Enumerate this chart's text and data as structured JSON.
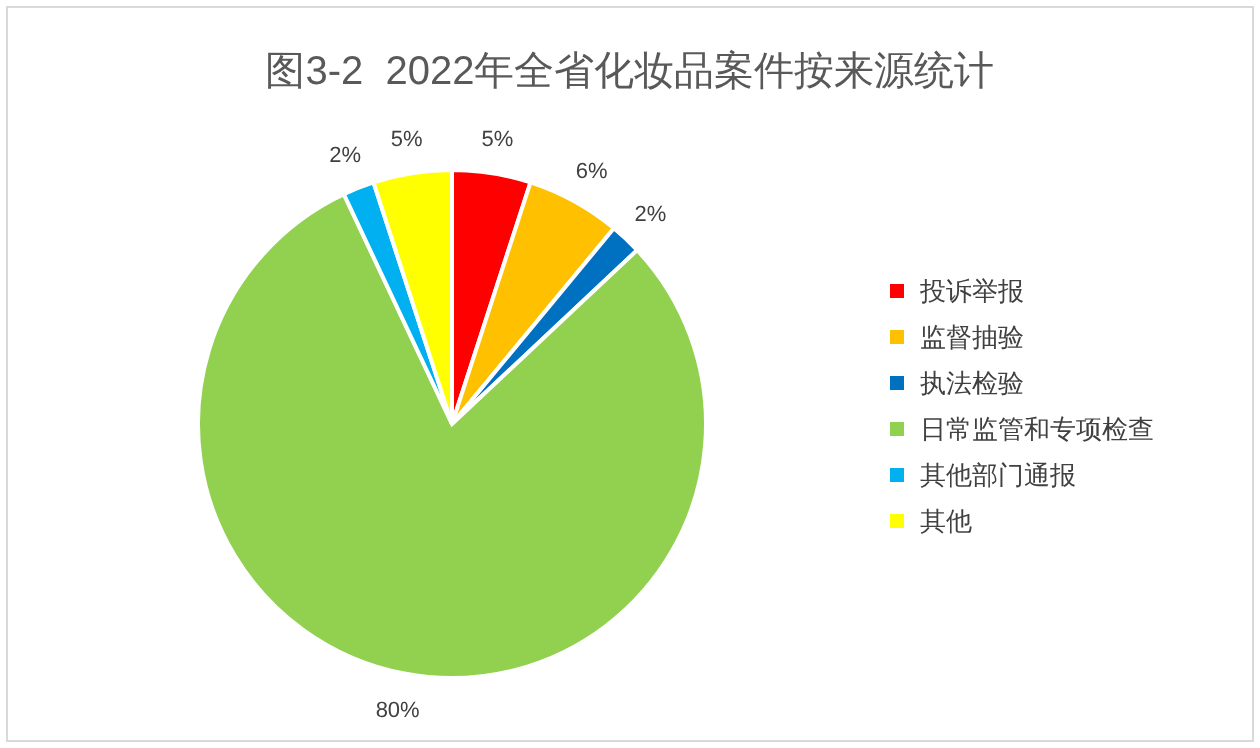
{
  "chart_data": {
    "type": "pie",
    "title": "图3-2  2022年全省化妆品案件按来源统计",
    "categories": [
      "投诉举报",
      "监督抽验",
      "执法检验",
      "日常监管和专项检查",
      "其他部门通报",
      "其他"
    ],
    "values": [
      5,
      6,
      2,
      80,
      2,
      5
    ],
    "colors": [
      "#ff0000",
      "#ffc000",
      "#0070c0",
      "#92d050",
      "#00b0f0",
      "#ffff00"
    ],
    "value_labels": [
      "5%",
      "6%",
      "2%",
      "80%",
      "2%",
      "5%"
    ],
    "legend": "right"
  }
}
